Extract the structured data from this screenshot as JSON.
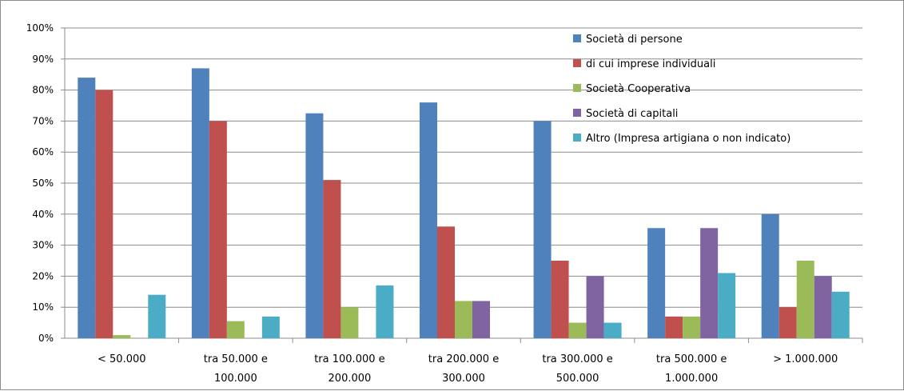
{
  "chart_data": {
    "type": "bar",
    "categories": [
      [
        "< 50.000"
      ],
      [
        "tra 50.000 e",
        "100.000"
      ],
      [
        "tra 100.000 e",
        "200.000"
      ],
      [
        "tra 200.000 e",
        "300.000"
      ],
      [
        "tra 300.000 e",
        "500.000"
      ],
      [
        "tra 500.000 e",
        "1.000.000"
      ],
      [
        "> 1.000.000"
      ]
    ],
    "series": [
      {
        "name": "Società di persone",
        "color": "#4F81BD",
        "values": [
          84,
          87,
          72.5,
          76,
          70,
          35.5,
          40
        ]
      },
      {
        "name": "di cui imprese individuali",
        "color": "#C0504D",
        "values": [
          80,
          70,
          51,
          36,
          25,
          7,
          10
        ]
      },
      {
        "name": "Società  Cooperativa",
        "color": "#9BBB59",
        "values": [
          1,
          5.5,
          10,
          12,
          5,
          7,
          25
        ]
      },
      {
        "name": "Società di capitali",
        "color": "#8064A2",
        "values": [
          0,
          0,
          0,
          12,
          20,
          35.5,
          20
        ]
      },
      {
        "name": "Altro (Impresa artigiana o non indicato)",
        "color": "#4BACC6",
        "values": [
          14,
          7,
          17,
          0,
          5,
          21,
          15
        ]
      }
    ],
    "yticks": [
      "0%",
      "10%",
      "20%",
      "30%",
      "40%",
      "50%",
      "60%",
      "70%",
      "80%",
      "90%",
      "100%"
    ],
    "ylim": [
      0,
      100
    ],
    "grid": true,
    "legend_position": "top-right"
  }
}
